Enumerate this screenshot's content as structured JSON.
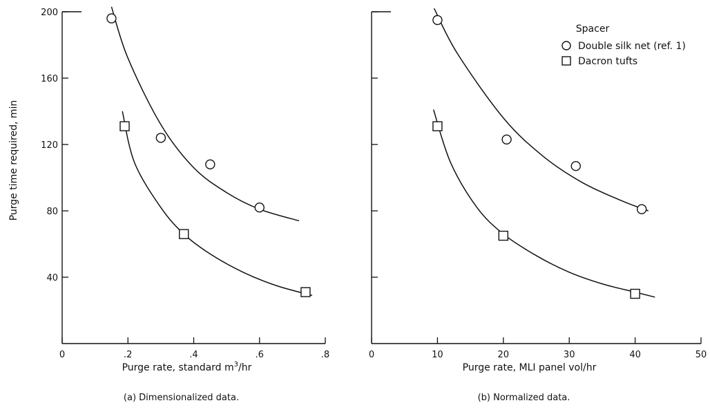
{
  "y_axis_label": "Purge time required, min",
  "legend": {
    "title": "Spacer",
    "entries": [
      {
        "label": "Double silk net (ref. 1)",
        "marker": "circle"
      },
      {
        "label": "Dacron tufts",
        "marker": "square"
      }
    ]
  },
  "chart_data": [
    {
      "type": "scatter",
      "caption": "(a) Dimensionalized data.",
      "xlabel_pre": "Purge rate, standard m",
      "xlabel_sup": "3",
      "xlabel_post": "/hr",
      "ylabel": "Purge time required, min",
      "xlim": [
        0,
        0.8
      ],
      "ylim": [
        0,
        200
      ],
      "x_ticks": [
        {
          "v": 0,
          "t": "0"
        },
        {
          "v": 0.2,
          "t": ".2"
        },
        {
          "v": 0.4,
          "t": ".4"
        },
        {
          "v": 0.6,
          "t": ".6"
        },
        {
          "v": 0.8,
          "t": ".8"
        }
      ],
      "y_ticks": [
        {
          "v": 40,
          "t": "40"
        },
        {
          "v": 80,
          "t": "80"
        },
        {
          "v": 120,
          "t": "120"
        },
        {
          "v": 160,
          "t": "160"
        },
        {
          "v": 200,
          "t": "200"
        }
      ],
      "series": [
        {
          "name": "Double silk net (ref. 1)",
          "marker": "circle",
          "points": [
            [
              0.15,
              196
            ],
            [
              0.3,
              124
            ],
            [
              0.45,
              108
            ],
            [
              0.6,
              82
            ]
          ],
          "curve": [
            [
              0.15,
              203
            ],
            [
              0.2,
              172
            ],
            [
              0.3,
              132
            ],
            [
              0.4,
              106
            ],
            [
              0.5,
              91
            ],
            [
              0.6,
              81
            ],
            [
              0.72,
              74
            ]
          ]
        },
        {
          "name": "Dacron tufts",
          "marker": "square",
          "points": [
            [
              0.19,
              131
            ],
            [
              0.37,
              66
            ],
            [
              0.74,
              31
            ]
          ],
          "curve": [
            [
              0.183,
              140
            ],
            [
              0.22,
              109
            ],
            [
              0.3,
              82
            ],
            [
              0.37,
              66
            ],
            [
              0.45,
              54
            ],
            [
              0.55,
              43
            ],
            [
              0.65,
              35
            ],
            [
              0.76,
              29
            ]
          ]
        }
      ]
    },
    {
      "type": "scatter",
      "caption": "(b) Normalized data.",
      "xlabel_pre": "Purge rate, MLI panel vol/hr",
      "xlabel_sup": "",
      "xlabel_post": "",
      "xlim": [
        0,
        50
      ],
      "ylim": [
        0,
        200
      ],
      "x_ticks": [
        {
          "v": 0,
          "t": "0"
        },
        {
          "v": 10,
          "t": "10"
        },
        {
          "v": 20,
          "t": "20"
        },
        {
          "v": 30,
          "t": "30"
        },
        {
          "v": 40,
          "t": "40"
        },
        {
          "v": 50,
          "t": "50"
        }
      ],
      "y_ticks": [
        {
          "v": 40,
          "t": ""
        },
        {
          "v": 80,
          "t": ""
        },
        {
          "v": 120,
          "t": ""
        },
        {
          "v": 160,
          "t": ""
        },
        {
          "v": 200,
          "t": ""
        }
      ],
      "series": [
        {
          "name": "Double silk net (ref. 1)",
          "marker": "circle",
          "points": [
            [
              10,
              195
            ],
            [
              20.5,
              123
            ],
            [
              31,
              107
            ],
            [
              41,
              81
            ]
          ],
          "curve": [
            [
              9.5,
              202
            ],
            [
              13,
              175
            ],
            [
              20,
              136
            ],
            [
              26,
              113
            ],
            [
              32,
              97
            ],
            [
              38,
              86
            ],
            [
              42,
              80
            ]
          ]
        },
        {
          "name": "Dacron tufts",
          "marker": "square",
          "points": [
            [
              10,
              131
            ],
            [
              20,
              65
            ],
            [
              40,
              30
            ]
          ],
          "curve": [
            [
              9.4,
              141
            ],
            [
              12,
              109
            ],
            [
              16,
              82
            ],
            [
              20,
              66
            ],
            [
              25,
              53
            ],
            [
              30,
              43
            ],
            [
              35,
              36
            ],
            [
              40,
              31
            ],
            [
              43,
              28
            ]
          ]
        }
      ]
    }
  ]
}
